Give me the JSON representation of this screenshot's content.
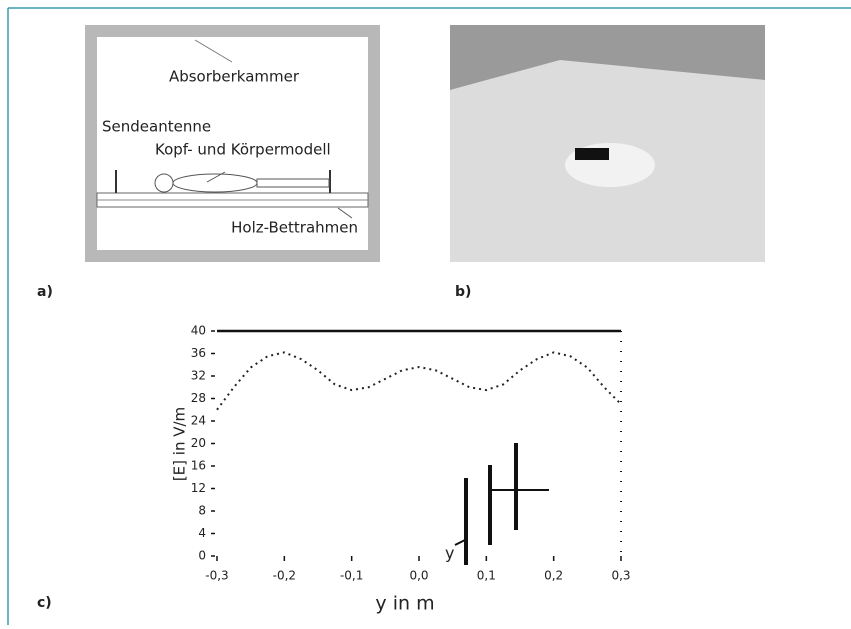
{
  "diagram": {
    "labels": [
      "Absorberkammer",
      "Sendeantenne",
      "Kopf- und Körpermodell",
      "Holz-Bettrahmen"
    ]
  },
  "panels": [
    "a)",
    "b)",
    "c)"
  ],
  "chart_data": {
    "type": "line",
    "xlabel": "y in m",
    "ylabel": "[E] in V/m",
    "annotation": "y",
    "x": [
      -0.3,
      -0.275,
      -0.25,
      -0.225,
      -0.2,
      -0.175,
      -0.15,
      -0.125,
      -0.1,
      -0.075,
      -0.05,
      -0.025,
      0,
      0.025,
      0.05,
      0.075,
      0.1,
      0.125,
      0.15,
      0.175,
      0.2,
      0.225,
      0.25,
      0.275,
      0.3
    ],
    "values": [
      26,
      30,
      33.5,
      35.5,
      36.2,
      35,
      33,
      30.5,
      29.5,
      30,
      31.5,
      33,
      33.6,
      33,
      31.5,
      30,
      29.5,
      30.5,
      33,
      35,
      36.2,
      35.5,
      33.5,
      30,
      27
    ],
    "color": "#222222",
    "xlim": [
      -0.3,
      0.3
    ],
    "xticks": [
      {
        "value": -0.3,
        "label": "-0,3"
      },
      {
        "value": -0.2,
        "label": "-0,2"
      },
      {
        "value": -0.1,
        "label": "-0,1"
      },
      {
        "value": 0,
        "label": "0,0"
      },
      {
        "value": 0.1,
        "label": "0,1"
      },
      {
        "value": 0.2,
        "label": "0,2"
      },
      {
        "value": 0.3,
        "label": "0,3"
      }
    ],
    "ylim": [
      0,
      40
    ],
    "yticks": [
      0,
      4,
      8,
      12,
      16,
      20,
      24,
      28,
      32,
      36,
      40
    ]
  }
}
